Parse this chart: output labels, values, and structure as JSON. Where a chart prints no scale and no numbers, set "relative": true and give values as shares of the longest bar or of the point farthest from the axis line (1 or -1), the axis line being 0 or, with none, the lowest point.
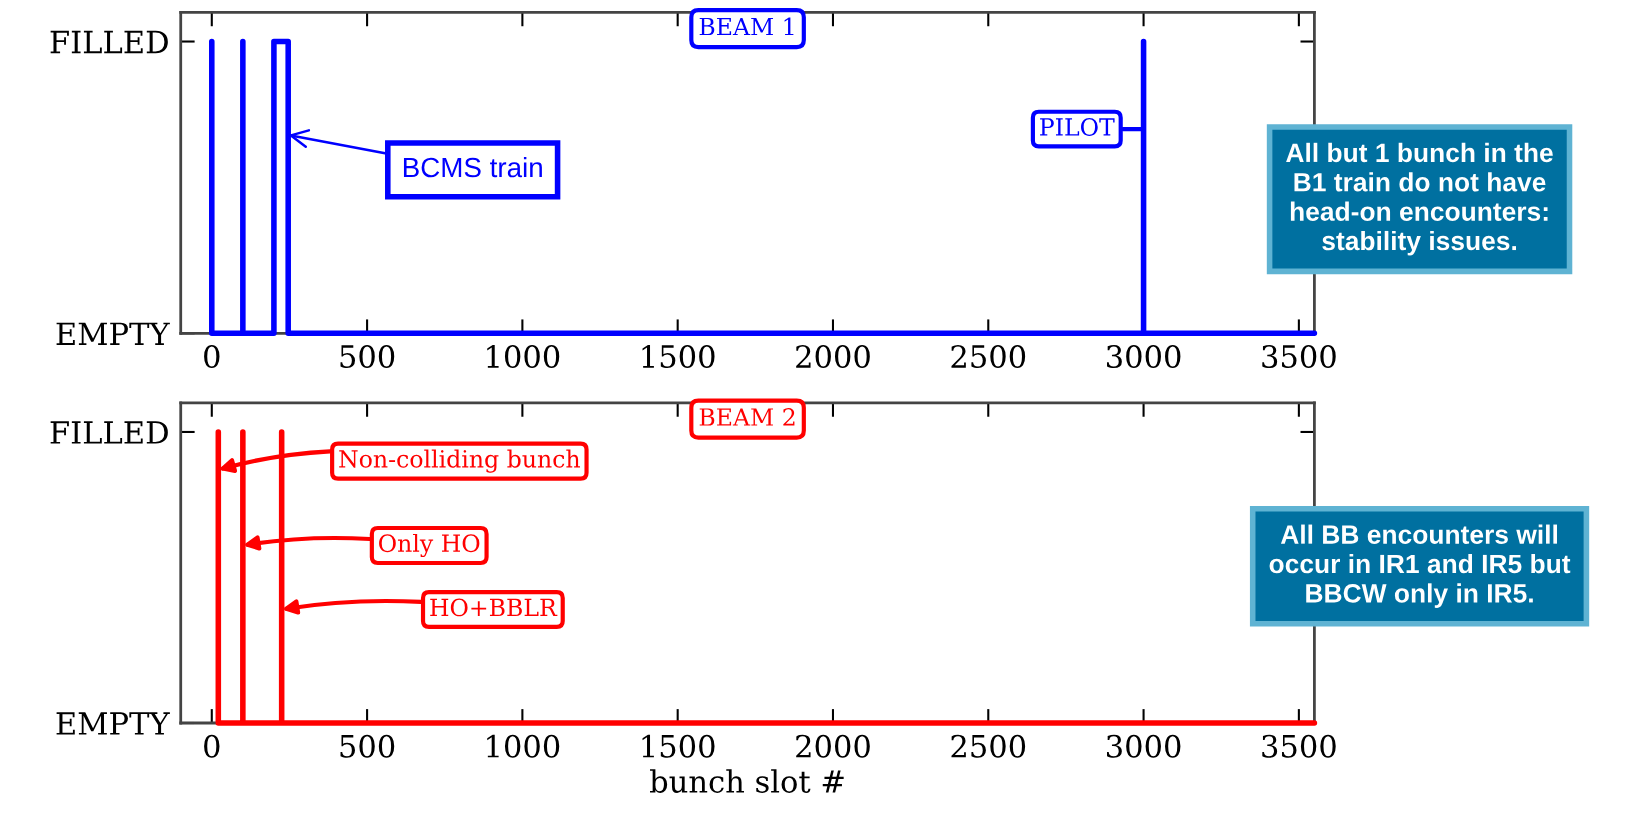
{
  "chart_data": [
    {
      "type": "line",
      "title": "BEAM 1",
      "color": "#0000ff",
      "x": [
        0,
        0,
        100,
        100,
        100,
        200,
        200,
        246,
        246,
        3000,
        3000,
        3000,
        3550
      ],
      "values": [
        1,
        0,
        0,
        1,
        0,
        0,
        1,
        1,
        0,
        0,
        1,
        0,
        0
      ],
      "xlim": [
        -100,
        3550
      ],
      "xticks": [
        0,
        500,
        1000,
        1500,
        2000,
        2500,
        3000,
        3500
      ],
      "relative": true,
      "y_categories": [
        "FILLED",
        "EMPTY"
      ],
      "annotations": [
        {
          "text": "BCMS train",
          "x": 246,
          "y": 0.68
        },
        {
          "text": "PILOT",
          "x": 3000,
          "y": 0.7
        },
        "All but 1 bunch in the\nB1 train do not have\nhead-on encounters:\nstability issues."
      ]
    },
    {
      "type": "line",
      "title": "BEAM 2",
      "color": "#ff0000",
      "xlabel": "bunch slot #",
      "x": [
        21,
        21,
        100,
        100,
        100,
        225,
        225,
        225,
        3550
      ],
      "values": [
        1,
        0,
        0,
        1,
        0,
        0,
        1,
        0,
        0
      ],
      "xlim": [
        -100,
        3550
      ],
      "xticks": [
        0,
        500,
        1000,
        1500,
        2000,
        2500,
        3000,
        3500
      ],
      "relative": true,
      "y_categories": [
        "FILLED",
        "EMPTY"
      ],
      "annotations": [
        {
          "text": "Non-colliding bunch",
          "x": 21,
          "y": 0.87
        },
        {
          "text": "Only HO",
          "x": 100,
          "y": 0.61
        },
        {
          "text": "HO+BBLR",
          "x": 225,
          "y": 0.39
        },
        "All BB encounters will\noccur in IR1 and IR5 but\nBBCW only in IR5."
      ]
    }
  ]
}
